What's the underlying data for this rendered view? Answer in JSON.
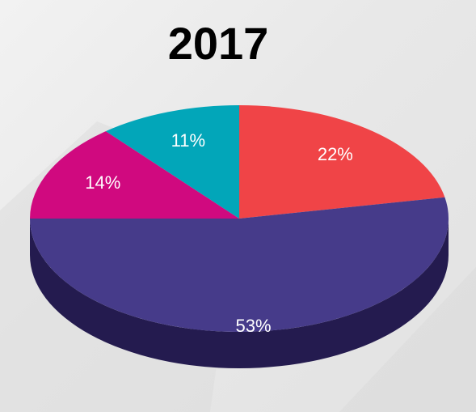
{
  "chart_data": {
    "type": "pie",
    "title": "2017",
    "three_d": true,
    "slices": [
      {
        "label": "22%",
        "value": 22,
        "color": "#f04447",
        "side_color": "#a82d31"
      },
      {
        "label": "53%",
        "value": 53,
        "color": "#463b8a",
        "side_color": "#241b4f"
      },
      {
        "label": "14%",
        "value": 14,
        "color": "#d0097f",
        "side_color": "#8a0554"
      },
      {
        "label": "11%",
        "value": 11,
        "color": "#02a6b9",
        "side_color": "#017482"
      }
    ],
    "start_angle": "12 o'clock",
    "direction": "clockwise"
  },
  "background": {
    "color": "#e8e8e8"
  }
}
